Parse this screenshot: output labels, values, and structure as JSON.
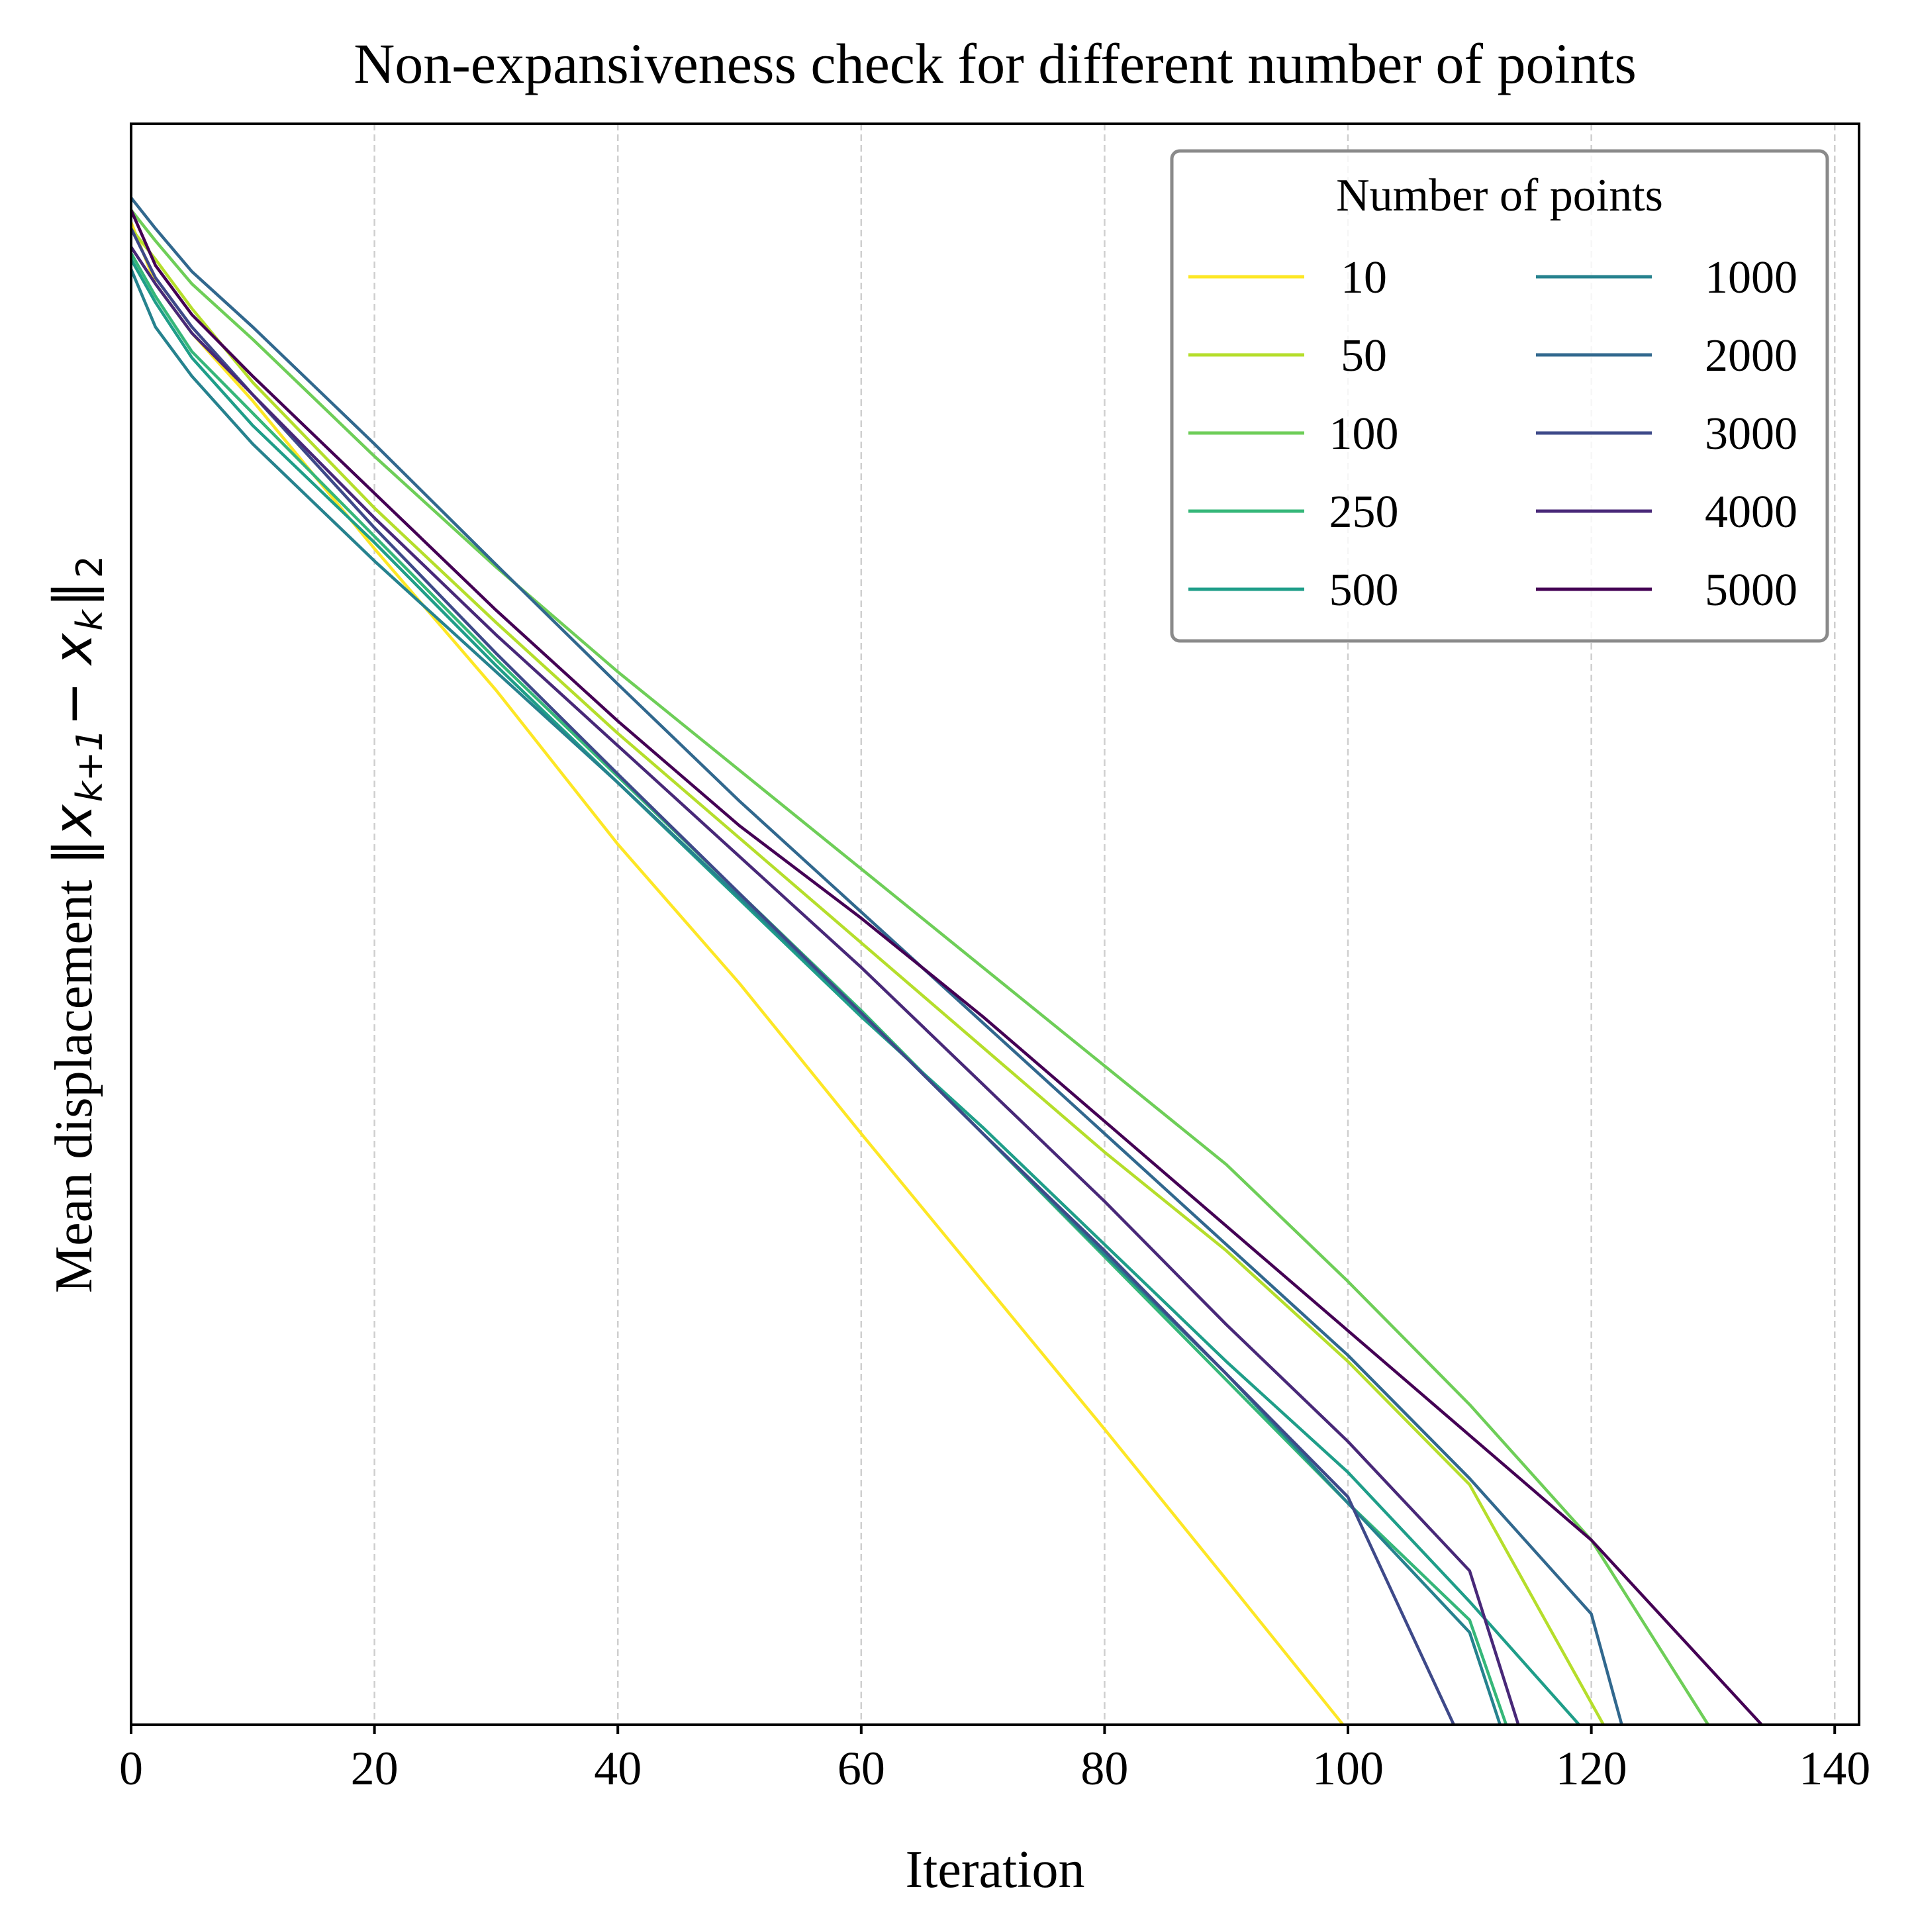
{
  "chart_data": {
    "type": "line",
    "title": "Non-expansiveness check for different number of points",
    "xlabel": "Iteration",
    "ylabel_prefix": "Mean displacement",
    "ylabel_math": "‖x_{k+1} − x_k‖_2",
    "ylabel_math_parts": {
      "bar_open": "‖",
      "x1": "x",
      "sub1": "k+1",
      "minus": " − ",
      "x2": "x",
      "sub2": "k",
      "bar_close": "‖",
      "sub3": "2"
    },
    "yscale": "log",
    "ytick_labels": "none",
    "xlim": [
      0,
      142
    ],
    "xticks": [
      0,
      20,
      40,
      60,
      80,
      100,
      120,
      140
    ],
    "ylim": [
      -12.5,
      0.5
    ],
    "grid": "x-only, dashed",
    "legend": {
      "title": "Number of points",
      "location": "upper right",
      "ncol": 2
    },
    "series": [
      {
        "name": "10",
        "color": "#fde725",
        "points": [
          [
            0,
            -0.3
          ],
          [
            2,
            -0.8
          ],
          [
            5,
            -1.2
          ],
          [
            10,
            -1.75
          ],
          [
            20,
            -2.95
          ],
          [
            30,
            -4.1
          ],
          [
            40,
            -5.35
          ],
          [
            50,
            -6.48
          ],
          [
            60,
            -7.7
          ],
          [
            70,
            -8.9
          ],
          [
            80,
            -10.1
          ],
          [
            90,
            -11.32
          ],
          [
            99.6,
            -12.5
          ]
        ]
      },
      {
        "name": "50",
        "color": "#b5de2b",
        "points": [
          [
            0,
            -0.35
          ],
          [
            2,
            -0.6
          ],
          [
            5,
            -1.0
          ],
          [
            10,
            -1.6
          ],
          [
            20,
            -2.62
          ],
          [
            30,
            -3.55
          ],
          [
            40,
            -4.45
          ],
          [
            50,
            -5.3
          ],
          [
            60,
            -6.15
          ],
          [
            70,
            -7.0
          ],
          [
            80,
            -7.85
          ],
          [
            90,
            -8.65
          ],
          [
            100,
            -9.55
          ],
          [
            110,
            -10.55
          ],
          [
            121,
            -12.5
          ]
        ]
      },
      {
        "name": "100",
        "color": "#6ece58",
        "points": [
          [
            0,
            -0.2
          ],
          [
            2,
            -0.45
          ],
          [
            5,
            -0.8
          ],
          [
            10,
            -1.25
          ],
          [
            20,
            -2.2
          ],
          [
            30,
            -3.1
          ],
          [
            40,
            -3.95
          ],
          [
            50,
            -4.75
          ],
          [
            60,
            -5.55
          ],
          [
            70,
            -6.35
          ],
          [
            80,
            -7.15
          ],
          [
            90,
            -7.95
          ],
          [
            100,
            -8.9
          ],
          [
            110,
            -9.9
          ],
          [
            120,
            -11.0
          ],
          [
            129.6,
            -12.5
          ]
        ]
      },
      {
        "name": "250",
        "color": "#35b779",
        "points": [
          [
            0,
            -0.55
          ],
          [
            2,
            -0.9
          ],
          [
            5,
            -1.35
          ],
          [
            10,
            -1.85
          ],
          [
            20,
            -2.85
          ],
          [
            30,
            -3.85
          ],
          [
            40,
            -4.8
          ],
          [
            50,
            -5.75
          ],
          [
            60,
            -6.7
          ],
          [
            70,
            -7.7
          ],
          [
            80,
            -8.7
          ],
          [
            90,
            -9.7
          ],
          [
            100,
            -10.7
          ],
          [
            110,
            -11.65
          ],
          [
            113,
            -12.5
          ]
        ]
      },
      {
        "name": "500",
        "color": "#1f9e89",
        "points": [
          [
            0,
            -0.6
          ],
          [
            2,
            -0.95
          ],
          [
            5,
            -1.4
          ],
          [
            10,
            -1.95
          ],
          [
            20,
            -2.9
          ],
          [
            30,
            -3.9
          ],
          [
            40,
            -4.85
          ],
          [
            50,
            -5.8
          ],
          [
            60,
            -6.75
          ],
          [
            70,
            -7.65
          ],
          [
            80,
            -8.6
          ],
          [
            90,
            -9.55
          ],
          [
            100,
            -10.45
          ],
          [
            110,
            -11.5
          ],
          [
            119,
            -12.5
          ]
        ]
      },
      {
        "name": "1000",
        "color": "#26828e",
        "points": [
          [
            0,
            -0.68
          ],
          [
            2,
            -1.15
          ],
          [
            5,
            -1.55
          ],
          [
            10,
            -2.1
          ],
          [
            20,
            -3.05
          ],
          [
            30,
            -3.95
          ],
          [
            40,
            -4.85
          ],
          [
            50,
            -5.78
          ],
          [
            60,
            -6.72
          ],
          [
            70,
            -7.7
          ],
          [
            80,
            -8.68
          ],
          [
            90,
            -9.65
          ],
          [
            100,
            -10.7
          ],
          [
            110,
            -11.75
          ],
          [
            112.5,
            -12.5
          ]
        ]
      },
      {
        "name": "2000",
        "color": "#31688e",
        "points": [
          [
            0,
            -0.1
          ],
          [
            2,
            -0.35
          ],
          [
            5,
            -0.7
          ],
          [
            10,
            -1.15
          ],
          [
            20,
            -2.1
          ],
          [
            30,
            -3.08
          ],
          [
            40,
            -4.05
          ],
          [
            50,
            -5.0
          ],
          [
            60,
            -5.9
          ],
          [
            70,
            -6.8
          ],
          [
            80,
            -7.7
          ],
          [
            90,
            -8.6
          ],
          [
            100,
            -9.5
          ],
          [
            110,
            -10.5
          ],
          [
            120,
            -11.6
          ],
          [
            122.5,
            -12.5
          ]
        ]
      },
      {
        "name": "3000",
        "color": "#3e4989",
        "points": [
          [
            0,
            -0.35
          ],
          [
            2,
            -0.75
          ],
          [
            5,
            -1.15
          ],
          [
            10,
            -1.7
          ],
          [
            20,
            -2.78
          ],
          [
            30,
            -3.8
          ],
          [
            40,
            -4.78
          ],
          [
            50,
            -5.75
          ],
          [
            60,
            -6.72
          ],
          [
            70,
            -7.7
          ],
          [
            80,
            -8.65
          ],
          [
            90,
            -9.65
          ],
          [
            100,
            -10.65
          ],
          [
            108.7,
            -12.5
          ]
        ]
      },
      {
        "name": "4000",
        "color": "#482878",
        "points": [
          [
            0,
            -0.5
          ],
          [
            2,
            -0.8
          ],
          [
            5,
            -1.2
          ],
          [
            10,
            -1.7
          ],
          [
            20,
            -2.7
          ],
          [
            30,
            -3.65
          ],
          [
            40,
            -4.55
          ],
          [
            50,
            -5.45
          ],
          [
            60,
            -6.35
          ],
          [
            70,
            -7.3
          ],
          [
            80,
            -8.25
          ],
          [
            90,
            -9.25
          ],
          [
            100,
            -10.2
          ],
          [
            110,
            -11.25
          ],
          [
            114,
            -12.5
          ]
        ]
      },
      {
        "name": "5000",
        "color": "#440154",
        "points": [
          [
            0,
            -0.2
          ],
          [
            2,
            -0.65
          ],
          [
            5,
            -1.05
          ],
          [
            10,
            -1.55
          ],
          [
            20,
            -2.5
          ],
          [
            30,
            -3.45
          ],
          [
            40,
            -4.35
          ],
          [
            50,
            -5.2
          ],
          [
            60,
            -5.95
          ],
          [
            70,
            -6.75
          ],
          [
            80,
            -7.6
          ],
          [
            90,
            -8.45
          ],
          [
            100,
            -9.3
          ],
          [
            110,
            -10.15
          ],
          [
            120,
            -11.0
          ],
          [
            134,
            -12.5
          ]
        ]
      }
    ]
  }
}
